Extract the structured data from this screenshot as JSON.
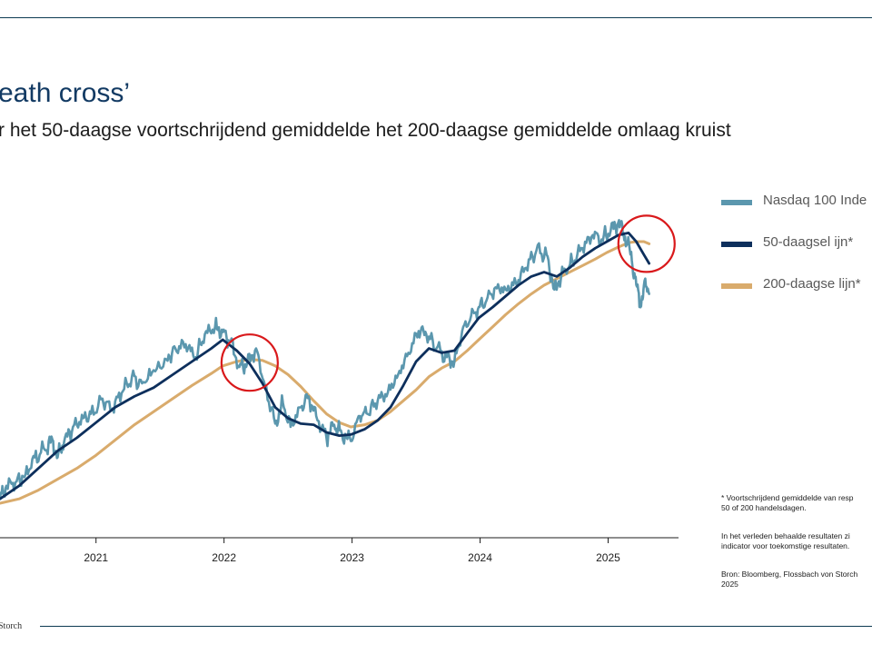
{
  "header": {
    "title": "eath cross’",
    "subtitle": "r het 50-daagse voortschrijdend gemiddelde het 200-daagse gemiddelde omlaag kruist"
  },
  "legend": {
    "items": [
      {
        "label": "Nasdaq 100 Inde",
        "color": "#5b97ae"
      },
      {
        "label": "50-daagsel ijn*",
        "color": "#0d2f5c"
      },
      {
        "label": "200-daagse lijn*",
        "color": "#d9ab6c"
      }
    ]
  },
  "notes": {
    "footnote_line1": "* Voortschrijdend gemiddelde van resp",
    "footnote_line2": "50 of 200 handelsdagen.",
    "disclaimer_line1": "In het verleden behaalde resultaten zi",
    "disclaimer_line2": "indicator voor toekomstige resultaten.",
    "source_line1": "Bron: Bloomberg, Flossbach von Storch",
    "source_line2": "2025"
  },
  "footer": {
    "brand": "Storch"
  },
  "colors": {
    "rule": "#0d3b52",
    "highlight_circle": "#d9191b"
  },
  "chart_data": {
    "type": "line",
    "x_ticks": [
      "2021",
      "2022",
      "2023",
      "2024",
      "2025"
    ],
    "x_range": [
      2020.25,
      2025.55
    ],
    "y_scale": "relative (no y-axis printed)",
    "grid": false,
    "legend_position": "right",
    "highlights": [
      {
        "label": "death cross 2022",
        "x": 2022.2
      },
      {
        "label": "death cross 2025",
        "x": 2025.3
      }
    ],
    "series": [
      {
        "name": "Nasdaq 100 Inde",
        "points": [
          [
            2020.25,
            35
          ],
          [
            2020.3,
            46
          ],
          [
            2020.38,
            50
          ],
          [
            2020.45,
            57
          ],
          [
            2020.52,
            72
          ],
          [
            2020.6,
            79
          ],
          [
            2020.66,
            88
          ],
          [
            2020.7,
            72
          ],
          [
            2020.75,
            86
          ],
          [
            2020.82,
            100
          ],
          [
            2020.9,
            108
          ],
          [
            2020.96,
            112
          ],
          [
            2021.05,
            126
          ],
          [
            2021.12,
            116
          ],
          [
            2021.2,
            131
          ],
          [
            2021.28,
            146
          ],
          [
            2021.36,
            140
          ],
          [
            2021.45,
            152
          ],
          [
            2021.55,
            162
          ],
          [
            2021.62,
            172
          ],
          [
            2021.7,
            176
          ],
          [
            2021.78,
            164
          ],
          [
            2021.85,
            185
          ],
          [
            2021.93,
            192
          ],
          [
            2021.99,
            187
          ],
          [
            2022.05,
            178
          ],
          [
            2022.12,
            155
          ],
          [
            2022.18,
            158
          ],
          [
            2022.25,
            172
          ],
          [
            2022.32,
            138
          ],
          [
            2022.4,
            103
          ],
          [
            2022.46,
            122
          ],
          [
            2022.52,
            100
          ],
          [
            2022.6,
            118
          ],
          [
            2022.66,
            128
          ],
          [
            2022.72,
            110
          ],
          [
            2022.8,
            90
          ],
          [
            2022.86,
            102
          ],
          [
            2022.92,
            94
          ],
          [
            2022.99,
            87
          ],
          [
            2023.06,
            110
          ],
          [
            2023.12,
            112
          ],
          [
            2023.2,
            124
          ],
          [
            2023.28,
            132
          ],
          [
            2023.36,
            148
          ],
          [
            2023.44,
            168
          ],
          [
            2023.52,
            188
          ],
          [
            2023.58,
            185
          ],
          [
            2023.66,
            172
          ],
          [
            2023.74,
            164
          ],
          [
            2023.8,
            160
          ],
          [
            2023.86,
            188
          ],
          [
            2023.93,
            202
          ],
          [
            2023.99,
            210
          ],
          [
            2024.05,
            216
          ],
          [
            2024.12,
            228
          ],
          [
            2024.2,
            226
          ],
          [
            2024.28,
            232
          ],
          [
            2024.36,
            246
          ],
          [
            2024.44,
            262
          ],
          [
            2024.52,
            258
          ],
          [
            2024.58,
            226
          ],
          [
            2024.65,
            242
          ],
          [
            2024.72,
            252
          ],
          [
            2024.8,
            264
          ],
          [
            2024.88,
            276
          ],
          [
            2024.95,
            272
          ],
          [
            2025.02,
            280
          ],
          [
            2025.08,
            288
          ],
          [
            2025.12,
            278
          ],
          [
            2025.17,
            262
          ],
          [
            2025.21,
            238
          ],
          [
            2025.25,
            210
          ],
          [
            2025.28,
            230
          ],
          [
            2025.32,
            222
          ]
        ]
      },
      {
        "name": "50-daagsel ijn*",
        "points": [
          [
            2020.25,
            34
          ],
          [
            2020.4,
            46
          ],
          [
            2020.55,
            62
          ],
          [
            2020.7,
            78
          ],
          [
            2020.85,
            90
          ],
          [
            2021.0,
            104
          ],
          [
            2021.15,
            118
          ],
          [
            2021.3,
            128
          ],
          [
            2021.45,
            136
          ],
          [
            2021.6,
            148
          ],
          [
            2021.75,
            160
          ],
          [
            2021.9,
            172
          ],
          [
            2021.99,
            180
          ],
          [
            2022.1,
            170
          ],
          [
            2022.2,
            158
          ],
          [
            2022.3,
            140
          ],
          [
            2022.4,
            118
          ],
          [
            2022.5,
            108
          ],
          [
            2022.6,
            103
          ],
          [
            2022.7,
            102
          ],
          [
            2022.8,
            95
          ],
          [
            2022.9,
            92
          ],
          [
            2022.99,
            93
          ],
          [
            2023.1,
            98
          ],
          [
            2023.2,
            106
          ],
          [
            2023.3,
            118
          ],
          [
            2023.4,
            138
          ],
          [
            2023.5,
            160
          ],
          [
            2023.6,
            172
          ],
          [
            2023.7,
            168
          ],
          [
            2023.8,
            170
          ],
          [
            2023.9,
            186
          ],
          [
            2023.99,
            200
          ],
          [
            2024.1,
            210
          ],
          [
            2024.2,
            220
          ],
          [
            2024.3,
            230
          ],
          [
            2024.4,
            238
          ],
          [
            2024.5,
            242
          ],
          [
            2024.6,
            238
          ],
          [
            2024.7,
            246
          ],
          [
            2024.8,
            256
          ],
          [
            2024.9,
            264
          ],
          [
            2024.99,
            270
          ],
          [
            2025.08,
            276
          ],
          [
            2025.16,
            278
          ],
          [
            2025.22,
            270
          ],
          [
            2025.28,
            258
          ],
          [
            2025.32,
            250
          ]
        ]
      },
      {
        "name": "200-daagse lijn*",
        "points": [
          [
            2020.25,
            30
          ],
          [
            2020.4,
            34
          ],
          [
            2020.55,
            42
          ],
          [
            2020.7,
            52
          ],
          [
            2020.85,
            62
          ],
          [
            2021.0,
            74
          ],
          [
            2021.15,
            88
          ],
          [
            2021.3,
            102
          ],
          [
            2021.45,
            114
          ],
          [
            2021.6,
            126
          ],
          [
            2021.75,
            138
          ],
          [
            2021.9,
            149
          ],
          [
            2021.99,
            156
          ],
          [
            2022.1,
            160
          ],
          [
            2022.2,
            162
          ],
          [
            2022.3,
            161
          ],
          [
            2022.4,
            156
          ],
          [
            2022.5,
            148
          ],
          [
            2022.6,
            137
          ],
          [
            2022.7,
            124
          ],
          [
            2022.8,
            112
          ],
          [
            2022.9,
            104
          ],
          [
            2022.99,
            100
          ],
          [
            2023.1,
            102
          ],
          [
            2023.2,
            106
          ],
          [
            2023.3,
            114
          ],
          [
            2023.4,
            124
          ],
          [
            2023.5,
            134
          ],
          [
            2023.6,
            146
          ],
          [
            2023.7,
            154
          ],
          [
            2023.8,
            160
          ],
          [
            2023.9,
            170
          ],
          [
            2023.99,
            180
          ],
          [
            2024.1,
            192
          ],
          [
            2024.2,
            203
          ],
          [
            2024.3,
            213
          ],
          [
            2024.4,
            222
          ],
          [
            2024.5,
            230
          ],
          [
            2024.6,
            236
          ],
          [
            2024.7,
            242
          ],
          [
            2024.8,
            248
          ],
          [
            2024.9,
            254
          ],
          [
            2024.99,
            260
          ],
          [
            2025.08,
            265
          ],
          [
            2025.16,
            269
          ],
          [
            2025.22,
            270
          ],
          [
            2025.28,
            270
          ],
          [
            2025.32,
            268
          ]
        ]
      }
    ]
  }
}
